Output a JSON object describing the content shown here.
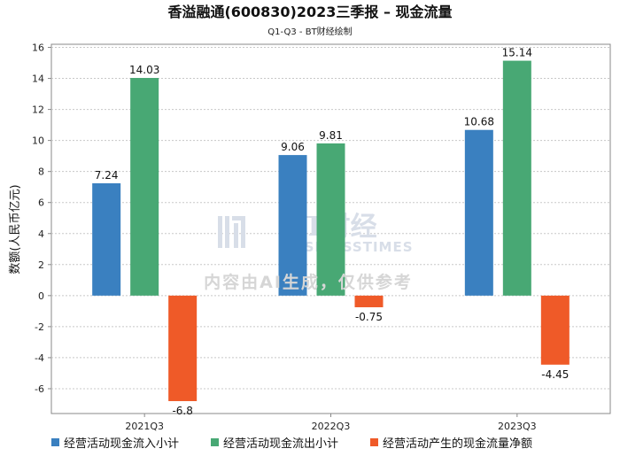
{
  "chart_data": {
    "type": "bar",
    "title": "香溢融通(600830)2023三季报 – 现金流量",
    "subtitle": "Q1-Q3 - BT财经绘制",
    "ylabel": "数额(人民币亿元)",
    "xlabel": "",
    "categories": [
      "2021Q3",
      "2022Q3",
      "2023Q3"
    ],
    "ylim": [
      -7.6,
      16.2
    ],
    "yticks": [
      -6,
      -4,
      -2,
      0,
      2,
      4,
      6,
      8,
      10,
      12,
      14,
      16
    ],
    "series": [
      {
        "name": "经营活动现金流入小计",
        "color": "#3a80c0",
        "values": [
          7.24,
          9.06,
          10.68
        ],
        "labels": [
          "7.24",
          "9.06",
          "10.68"
        ]
      },
      {
        "name": "经营活动现金流出小计",
        "color": "#48a874",
        "values": [
          14.03,
          9.81,
          15.14
        ],
        "labels": [
          "14.03",
          "9.81",
          "15.14"
        ]
      },
      {
        "name": "经营活动产生的现金流量净额",
        "color": "#ef5a28",
        "values": [
          -6.8,
          -0.75,
          -4.45
        ],
        "labels": [
          "-6.8",
          "-0.75",
          "-4.45"
        ]
      }
    ],
    "grid": true,
    "legend": "bottom"
  },
  "watermark": {
    "brand": "BT财经",
    "brand_sub": "BUSINESSTIMES",
    "notice": "内容由AI生成，仅供参考"
  }
}
